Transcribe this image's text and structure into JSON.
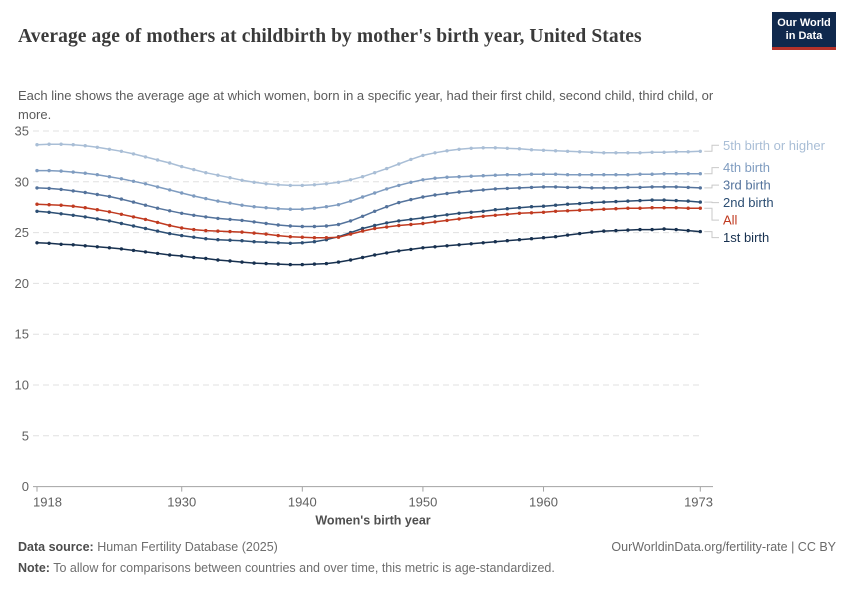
{
  "header": {
    "title": "Average age of mothers at childbirth by mother's birth year, United States",
    "subtitle": "Each line shows the average age at which women, born in a specific year, had their first child, second child, third child, or more."
  },
  "logo": {
    "line1": "Our World",
    "line2": "in Data"
  },
  "colors": {
    "logo_bg": "#10294d",
    "logo_underline": "#b5322a",
    "axis": "#a3a3a3",
    "gridline": "#e0e0e0",
    "tick_text": "#616161",
    "connector": "#c9c9c9"
  },
  "chart_data": {
    "type": "line",
    "title": "Average age of mothers at childbirth by mother's birth year, United States",
    "xlabel": "Women's birth year",
    "ylabel": "",
    "xlim": [
      1918,
      1973
    ],
    "ylim": [
      0,
      35
    ],
    "x_ticks": [
      1918,
      1930,
      1940,
      1950,
      1960,
      1973
    ],
    "y_ticks": [
      0,
      5,
      10,
      15,
      20,
      25,
      30,
      35
    ],
    "grid": "dashed-horizontal",
    "legend_position": "right-edge-labels",
    "markers": "circle-every-year",
    "x_start": 1918,
    "x_step": 1,
    "series": [
      {
        "name": "5th birth or higher",
        "color": "#a9bed6",
        "values": [
          33.65,
          33.7,
          33.7,
          33.65,
          33.55,
          33.4,
          33.2,
          33.0,
          32.75,
          32.45,
          32.15,
          31.85,
          31.5,
          31.2,
          30.9,
          30.65,
          30.4,
          30.15,
          29.95,
          29.8,
          29.7,
          29.65,
          29.65,
          29.7,
          29.8,
          29.95,
          30.2,
          30.5,
          30.9,
          31.3,
          31.75,
          32.2,
          32.6,
          32.85,
          33.05,
          33.2,
          33.3,
          33.35,
          33.35,
          33.3,
          33.25,
          33.15,
          33.1,
          33.05,
          33.0,
          32.95,
          32.9,
          32.85,
          32.85,
          32.85,
          32.85,
          32.9,
          32.9,
          32.95,
          32.95,
          33.0
        ]
      },
      {
        "name": "4th birth",
        "color": "#7f9cc0",
        "values": [
          31.1,
          31.1,
          31.05,
          30.95,
          30.85,
          30.7,
          30.5,
          30.3,
          30.05,
          29.8,
          29.5,
          29.2,
          28.9,
          28.6,
          28.35,
          28.1,
          27.9,
          27.7,
          27.55,
          27.45,
          27.35,
          27.3,
          27.3,
          27.4,
          27.55,
          27.75,
          28.1,
          28.5,
          28.9,
          29.3,
          29.65,
          29.95,
          30.2,
          30.35,
          30.45,
          30.5,
          30.55,
          30.6,
          30.65,
          30.7,
          30.7,
          30.75,
          30.75,
          30.75,
          30.7,
          30.7,
          30.7,
          30.7,
          30.7,
          30.7,
          30.75,
          30.75,
          30.8,
          30.8,
          30.8,
          30.8
        ]
      },
      {
        "name": "3rd birth",
        "color": "#54739c",
        "values": [
          29.4,
          29.35,
          29.25,
          29.1,
          28.95,
          28.75,
          28.55,
          28.3,
          28.0,
          27.7,
          27.4,
          27.15,
          26.9,
          26.7,
          26.55,
          26.4,
          26.3,
          26.2,
          26.05,
          25.9,
          25.75,
          25.65,
          25.6,
          25.6,
          25.65,
          25.8,
          26.15,
          26.6,
          27.1,
          27.55,
          27.95,
          28.25,
          28.5,
          28.7,
          28.85,
          29.0,
          29.1,
          29.2,
          29.3,
          29.35,
          29.4,
          29.45,
          29.5,
          29.5,
          29.45,
          29.45,
          29.4,
          29.4,
          29.4,
          29.45,
          29.45,
          29.5,
          29.5,
          29.5,
          29.45,
          29.4
        ]
      },
      {
        "name": "2nd birth",
        "color": "#2c4e73",
        "values": [
          27.1,
          27.0,
          26.85,
          26.7,
          26.55,
          26.35,
          26.15,
          25.9,
          25.65,
          25.4,
          25.15,
          24.9,
          24.7,
          24.55,
          24.4,
          24.3,
          24.25,
          24.2,
          24.1,
          24.05,
          24.0,
          23.95,
          24.0,
          24.1,
          24.3,
          24.6,
          25.0,
          25.4,
          25.7,
          25.95,
          26.15,
          26.3,
          26.45,
          26.6,
          26.75,
          26.9,
          27.0,
          27.1,
          27.25,
          27.35,
          27.45,
          27.55,
          27.6,
          27.7,
          27.8,
          27.85,
          27.95,
          28.0,
          28.05,
          28.1,
          28.15,
          28.2,
          28.2,
          28.15,
          28.1,
          28.0
        ]
      },
      {
        "name": "All",
        "color": "#c03a20",
        "values": [
          27.8,
          27.75,
          27.7,
          27.6,
          27.45,
          27.25,
          27.05,
          26.8,
          26.55,
          26.3,
          26.0,
          25.7,
          25.45,
          25.3,
          25.2,
          25.15,
          25.1,
          25.05,
          24.95,
          24.85,
          24.7,
          24.6,
          24.55,
          24.5,
          24.5,
          24.55,
          24.85,
          25.15,
          25.4,
          25.55,
          25.7,
          25.8,
          25.9,
          26.05,
          26.2,
          26.35,
          26.5,
          26.6,
          26.7,
          26.8,
          26.9,
          26.95,
          27.0,
          27.1,
          27.15,
          27.2,
          27.25,
          27.3,
          27.35,
          27.4,
          27.4,
          27.45,
          27.45,
          27.45,
          27.4,
          27.4
        ]
      },
      {
        "name": "1st birth",
        "color": "#17304f",
        "values": [
          24.0,
          23.95,
          23.85,
          23.8,
          23.7,
          23.6,
          23.5,
          23.4,
          23.25,
          23.1,
          22.95,
          22.8,
          22.7,
          22.55,
          22.45,
          22.3,
          22.2,
          22.1,
          22.0,
          21.95,
          21.9,
          21.85,
          21.85,
          21.9,
          21.95,
          22.1,
          22.3,
          22.55,
          22.8,
          23.0,
          23.2,
          23.35,
          23.5,
          23.6,
          23.7,
          23.8,
          23.9,
          24.0,
          24.1,
          24.2,
          24.3,
          24.4,
          24.5,
          24.6,
          24.75,
          24.9,
          25.05,
          25.15,
          25.2,
          25.25,
          25.3,
          25.3,
          25.35,
          25.3,
          25.2,
          25.1
        ]
      }
    ]
  },
  "footer": {
    "datasource_label": "Data source:",
    "datasource_value": " Human Fertility Database (2025)",
    "link": "OurWorldinData.org/fertility-rate | CC BY",
    "note_label": "Note:",
    "note_value": " To allow for comparisons between countries and over time, this metric is age-standardized."
  }
}
